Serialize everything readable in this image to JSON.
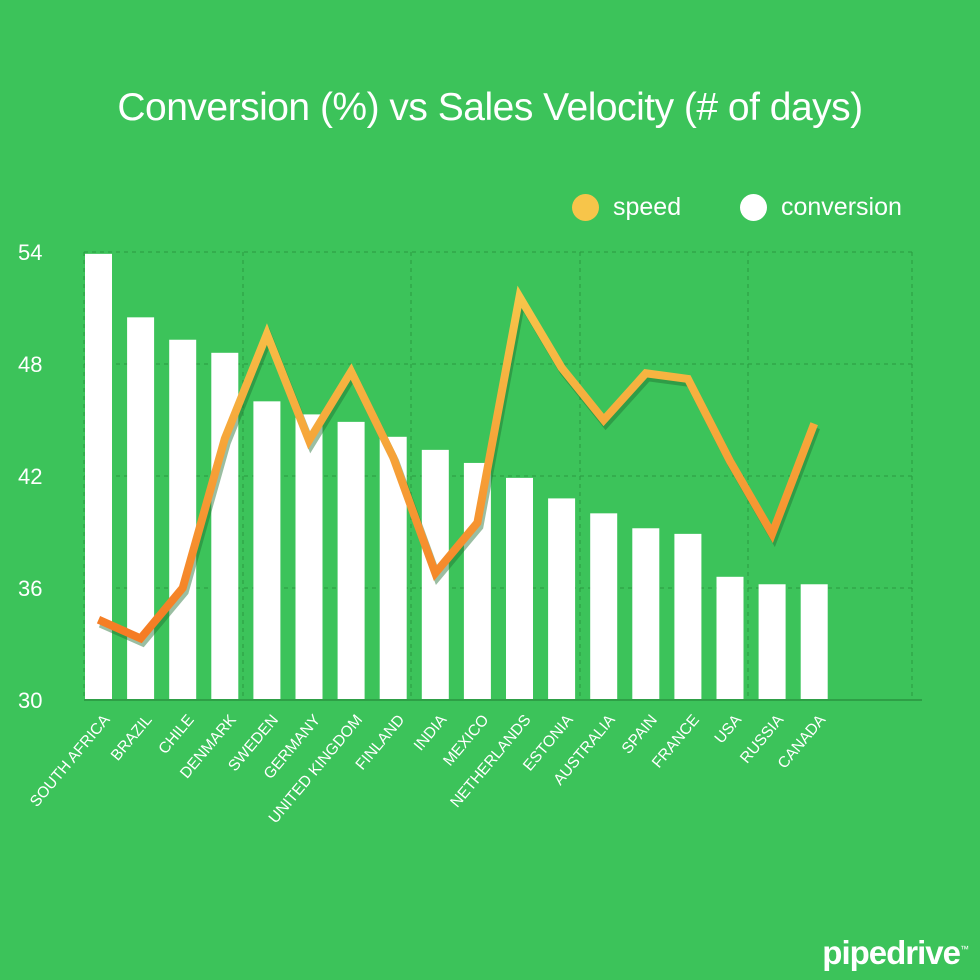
{
  "chart_data": {
    "type": "bar",
    "title": "Conversion (%) vs Sales Velocity (# of days)",
    "categories": [
      "SOUTH AFRICA",
      "BRAZIL",
      "CHILE",
      "DENMARK",
      "SWEDEN",
      "GERMANY",
      "UNITED KINGDOM",
      "FINLAND",
      "INDIA",
      "MEXICO",
      "NETHERLANDS",
      "ESTONIA",
      "AUSTRALIA",
      "SPAIN",
      "FRANCE",
      "USA",
      "RUSSIA",
      "CANADA"
    ],
    "series": [
      {
        "name": "conversion",
        "type": "bar",
        "color": "#ffffff",
        "values": [
          53.9,
          50.5,
          49.3,
          48.6,
          46.0,
          45.3,
          44.9,
          44.1,
          43.4,
          42.7,
          41.9,
          40.8,
          40.0,
          39.2,
          38.9,
          36.6,
          36.2,
          36.2
        ]
      },
      {
        "name": "speed",
        "type": "line",
        "color": "#f7c54a",
        "color_end": "#f57c24",
        "values": [
          34.3,
          33.3,
          36.0,
          44.0,
          49.6,
          43.9,
          47.6,
          43.0,
          36.8,
          39.5,
          51.6,
          47.8,
          45.0,
          47.5,
          47.2,
          42.8,
          38.9,
          44.8
        ]
      }
    ],
    "yticks": [
      30,
      36,
      42,
      48,
      54
    ],
    "ylim": [
      30,
      54
    ],
    "grid": true,
    "legend_position": "top-right"
  },
  "legend": {
    "speed_label": "speed",
    "conversion_label": "conversion"
  },
  "brand": {
    "name": "pipedrive",
    "mark": "™"
  },
  "colors": {
    "background": "#3cc35a",
    "grid": "#2a9a40",
    "axis": "#2e9f46",
    "label": "#ffffff"
  }
}
